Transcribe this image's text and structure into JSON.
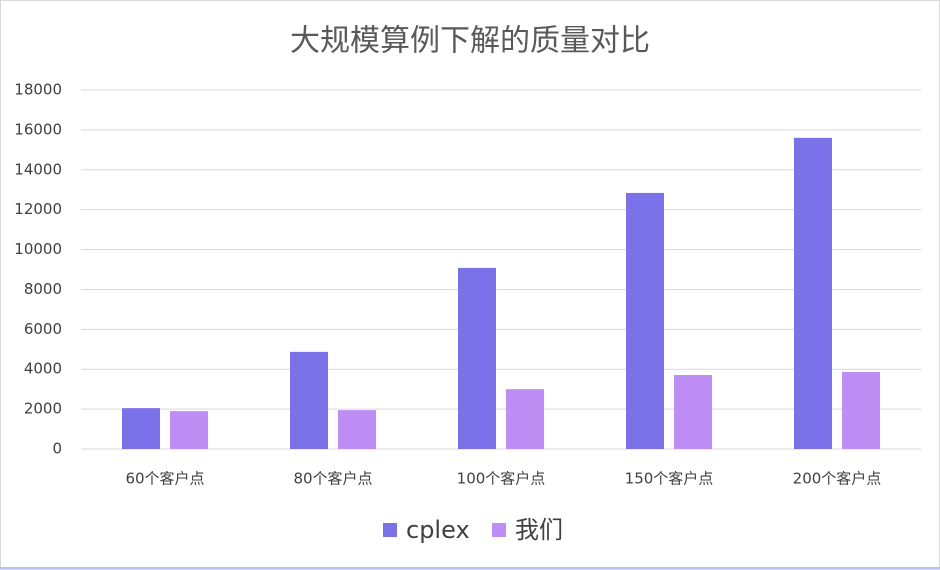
{
  "chart_data": {
    "type": "bar",
    "title": "大规模算例下解的质量对比",
    "categories": [
      "60个客户点",
      "80个客户点",
      "100个客户点",
      "150个客户点",
      "200个客户点"
    ],
    "series": [
      {
        "name": "cplex",
        "color": "#7b72e9",
        "values": [
          2050,
          4870,
          9080,
          12840,
          15600
        ]
      },
      {
        "name": "我们",
        "color": "#bf8ef5",
        "values": [
          1900,
          1950,
          3000,
          3710,
          3860
        ]
      }
    ],
    "ylim": [
      0,
      18000
    ],
    "yticks": [
      0,
      2000,
      4000,
      6000,
      8000,
      10000,
      12000,
      14000,
      16000,
      18000
    ],
    "grid": true,
    "legend": "bottom"
  }
}
